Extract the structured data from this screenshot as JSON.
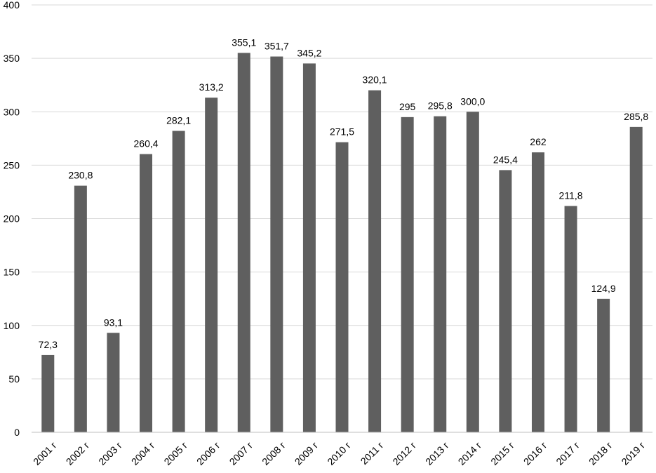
{
  "chart_data": {
    "type": "bar",
    "categories": [
      "2001 г",
      "2002 г",
      "2003 г",
      "2004 г",
      "2005 г",
      "2006 г",
      "2007 г",
      "2008 г",
      "2009 г",
      "2010 г",
      "2011 г",
      "2012 г",
      "2013 г",
      "2014 г",
      "2015 г",
      "2016 г",
      "2017 г",
      "2018 г",
      "2019 г"
    ],
    "values": [
      72.3,
      230.8,
      93.1,
      260.4,
      282.1,
      313.2,
      355.1,
      351.7,
      345.2,
      271.5,
      320.1,
      295,
      295.8,
      300.0,
      245.4,
      262,
      211.8,
      124.9,
      285.8
    ],
    "data_labels": [
      "72,3",
      "230,8",
      "93,1",
      "260,4",
      "282,1",
      "313,2",
      "355,1",
      "351,7",
      "345,2",
      "271,5",
      "320,1",
      "295",
      "295,8",
      "300,0",
      "245,4",
      "262",
      "211,8",
      "124,9",
      "285,8"
    ],
    "y_ticks": [
      "0",
      "50",
      "100",
      "150",
      "200",
      "250",
      "300",
      "350",
      "400"
    ],
    "ylim": [
      0,
      400
    ],
    "grid": true,
    "bar_color": "#5f5f5f",
    "title": "",
    "xlabel": "",
    "ylabel": ""
  }
}
